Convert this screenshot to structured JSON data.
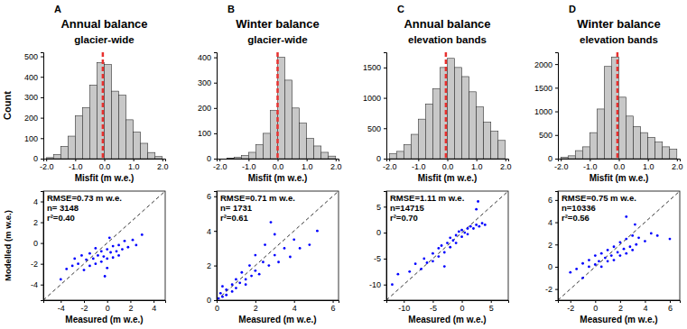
{
  "chart_data": [
    {
      "type": "histogram",
      "panel": "A",
      "title": "Annual balance",
      "subtitle": "glacier-wide",
      "xlabel": "Misfit (m w.e.)",
      "ylabel": "Count",
      "color": "#c8c8c8",
      "bins": [
        -2,
        -1.75,
        -1.5,
        -1.25,
        -1,
        -0.75,
        -0.5,
        -0.25,
        0,
        0.25,
        0.5,
        0.75,
        1,
        1.25,
        1.5,
        1.75,
        2
      ],
      "counts": [
        5,
        20,
        60,
        110,
        210,
        250,
        360,
        470,
        460,
        330,
        310,
        190,
        130,
        75,
        30,
        10
      ],
      "xlim": [
        -2.1,
        2.1
      ],
      "ylim": [
        0,
        520
      ],
      "xticks": [
        {
          "value": -2,
          "label": "-2.0"
        },
        {
          "value": -1,
          "label": "-1.0"
        },
        {
          "value": 0,
          "label": "0.0"
        },
        {
          "value": 1,
          "label": "1.0"
        },
        {
          "value": 2,
          "label": "2.0"
        }
      ],
      "yticks": [
        0,
        100,
        200,
        300,
        400,
        500
      ],
      "vline": {
        "value": -0.05,
        "color": "#e8312f",
        "line_style": "dashed"
      }
    },
    {
      "type": "histogram",
      "panel": "B",
      "title": "Winter balance",
      "subtitle": "glacier-wide",
      "xlabel": "Misfit (m w.e.)",
      "color": "#c8c8c8",
      "bins": [
        -2,
        -1.75,
        -1.5,
        -1.25,
        -1,
        -0.75,
        -0.5,
        -0.25,
        0,
        0.25,
        0.5,
        0.75,
        1,
        1.25,
        1.5,
        1.75,
        2
      ],
      "counts": [
        0,
        2,
        5,
        12,
        25,
        55,
        100,
        190,
        400,
        310,
        200,
        140,
        80,
        50,
        25,
        10
      ],
      "xlim": [
        -2.1,
        2.1
      ],
      "ylim": [
        0,
        420
      ],
      "xticks": [
        {
          "value": -2,
          "label": "-2.0"
        },
        {
          "value": -1,
          "label": "-1.0"
        },
        {
          "value": 0,
          "label": "0.0"
        },
        {
          "value": 1,
          "label": "1.0"
        },
        {
          "value": 2,
          "label": "2.0"
        }
      ],
      "yticks": [
        0,
        100,
        200,
        300,
        400
      ],
      "vline": {
        "value": 0,
        "color": "#e8312f",
        "line_style": "dashed"
      }
    },
    {
      "type": "histogram",
      "panel": "C",
      "title": "Annual balance",
      "subtitle": "elevation bands",
      "xlabel": "Misfit (m w.e.)",
      "color": "#c8c8c8",
      "bins": [
        -2,
        -1.75,
        -1.5,
        -1.25,
        -1,
        -0.75,
        -0.5,
        -0.25,
        0,
        0.25,
        0.5,
        0.75,
        1,
        1.25,
        1.5,
        1.75,
        2
      ],
      "counts": [
        80,
        120,
        230,
        400,
        650,
        900,
        1150,
        1500,
        1650,
        1500,
        1350,
        1100,
        850,
        600,
        450,
        300
      ],
      "xlim": [
        -2.1,
        2.1
      ],
      "ylim": [
        0,
        1750
      ],
      "xticks": [
        {
          "value": -2,
          "label": "-2.0"
        },
        {
          "value": -1,
          "label": "-1.0"
        },
        {
          "value": 0,
          "label": "0.0"
        },
        {
          "value": 1,
          "label": "1.0"
        },
        {
          "value": 2,
          "label": "2.0"
        }
      ],
      "yticks": [
        0,
        500,
        1000,
        1500
      ],
      "vline": {
        "value": -0.05,
        "color": "#e8312f",
        "line_style": "dashed"
      }
    },
    {
      "type": "histogram",
      "panel": "D",
      "title": "Winter balance",
      "subtitle": "elevation bands",
      "xlabel": "Misfit (m w.e.)",
      "color": "#c8c8c8",
      "bins": [
        -2,
        -1.75,
        -1.5,
        -1.25,
        -1,
        -0.75,
        -0.5,
        -0.25,
        0,
        0.25,
        0.5,
        0.75,
        1,
        1.25,
        1.5,
        1.75,
        2
      ],
      "counts": [
        30,
        60,
        170,
        250,
        550,
        1050,
        1950,
        2150,
        1300,
        900,
        680,
        550,
        450,
        350,
        250,
        200
      ],
      "xlim": [
        -2.1,
        2.1
      ],
      "ylim": [
        0,
        2250
      ],
      "xticks": [
        {
          "value": -2,
          "label": "-2.0"
        },
        {
          "value": -1,
          "label": "-1.0"
        },
        {
          "value": 0,
          "label": "0.0"
        },
        {
          "value": 1,
          "label": "1.0"
        },
        {
          "value": 2,
          "label": "2.0"
        }
      ],
      "yticks": [
        0,
        500,
        1000,
        1500,
        2000
      ],
      "vline": {
        "value": -0.05,
        "color": "#e8312f",
        "line_style": "dashed"
      }
    },
    {
      "type": "scatter",
      "xlabel": "Measured (m w.e.)",
      "ylabel": "Modelled (m w.e.)",
      "color": "#0000ff",
      "marker": "dot",
      "annotations": [
        "RMSE=0.73 m w.e.",
        "n= 3148",
        "r²=0.40"
      ],
      "xlim": [
        -5.5,
        5
      ],
      "ylim": [
        -5.5,
        5
      ],
      "xticks": [
        -4,
        -2,
        0,
        2,
        4
      ],
      "yticks": [
        -4,
        -2,
        0,
        2,
        4
      ],
      "x": [
        -3.5,
        -3,
        -2.8,
        -2.5,
        -2.2,
        -2,
        -1.8,
        -1.5,
        -1.5,
        -1.2,
        -1,
        -1,
        -0.8,
        -0.5,
        -0.5,
        -0.3,
        0,
        0,
        0,
        0.3,
        0.5,
        0.5,
        0.8,
        1,
        1,
        1.3,
        1.5,
        1.8,
        2.2,
        2.5,
        -4,
        3,
        -0.2,
        0.2
      ],
      "values": [
        -2.5,
        -2.2,
        -1.5,
        -2,
        -1.2,
        -2.6,
        -1.6,
        -1,
        -2.2,
        -1.5,
        -0.5,
        -2,
        -1.2,
        -0.8,
        -1.8,
        -1.3,
        -0.6,
        -1.5,
        -2.4,
        -0.9,
        -0.3,
        -1.4,
        -0.8,
        -0.2,
        -1.2,
        -0.6,
        0.2,
        -0.4,
        0.3,
        -0.2,
        -3.5,
        0.8,
        -3.2,
        0.5
      ]
    },
    {
      "type": "scatter",
      "xlabel": "Measured (m w.e.)",
      "color": "#0000ff",
      "marker": "dot",
      "annotations": [
        "RMSE=0.71 m w.e.",
        "n= 1731",
        "r²=0.61"
      ],
      "xlim": [
        0,
        6.3
      ],
      "ylim": [
        0,
        6.3
      ],
      "xticks": [
        0,
        2,
        4,
        6
      ],
      "yticks": [
        0,
        2,
        4,
        6
      ],
      "x": [
        0.1,
        0.2,
        0.3,
        0.5,
        0.5,
        0.8,
        0.8,
        1,
        1,
        1.2,
        1.3,
        1.5,
        1.5,
        1.7,
        1.8,
        2,
        2,
        2.2,
        2.4,
        2.5,
        2.7,
        3,
        3,
        3.2,
        3.5,
        3.8,
        4,
        4.3,
        4.8,
        5.2,
        2.8,
        0.3
      ],
      "values": [
        0.1,
        0.4,
        0.2,
        0.6,
        0.3,
        0.9,
        0.5,
        1.2,
        0.7,
        1,
        1.6,
        1.2,
        0.9,
        2,
        1.4,
        1.7,
        2.6,
        1.5,
        2.2,
        3.2,
        2,
        2.6,
        3.8,
        2.2,
        3,
        2.5,
        3.5,
        3,
        3.2,
        4,
        4.5,
        0.8
      ]
    },
    {
      "type": "scatter",
      "xlabel": "Measured (m w.e.)",
      "color": "#0000ff",
      "marker": "dot",
      "annotations": [
        "RMSE=1.11 m w.e.",
        "n=14715",
        "r²=0.70"
      ],
      "xlim": [
        -13,
        8
      ],
      "ylim": [
        -13,
        8
      ],
      "xticks": [
        -10,
        -5,
        0,
        5
      ],
      "yticks": [
        -10,
        -5,
        0,
        5
      ],
      "x": [
        -11,
        -9,
        -8,
        -7,
        -6.5,
        -6,
        -5,
        -5,
        -4,
        -4,
        -3.5,
        -3,
        -2.5,
        -2,
        -2,
        -1.5,
        -1,
        -1,
        -0.5,
        0,
        0,
        0.5,
        1,
        1,
        1.5,
        2,
        2.5,
        3,
        3.5,
        4,
        2.5,
        2.8,
        -12,
        -3
      ],
      "values": [
        -8,
        -7.5,
        -6,
        -7,
        -5,
        -5.8,
        -4,
        -5.5,
        -3,
        -4.6,
        -2.5,
        -3.8,
        -2,
        -2.8,
        -1,
        -1.5,
        -0.5,
        -2,
        0.2,
        -0.8,
        0.5,
        0,
        0.8,
        -0.3,
        1.2,
        0.8,
        1.5,
        1.2,
        1.8,
        1.5,
        4.5,
        6,
        -10,
        -6.5
      ]
    },
    {
      "type": "scatter",
      "xlabel": "Measured (m w.e.)",
      "color": "#0000ff",
      "marker": "dot",
      "annotations": [
        "RMSE=0.75 m w.e.",
        "n=10336",
        "r²=0.56"
      ],
      "xlim": [
        -3,
        6.8
      ],
      "ylim": [
        -3,
        6.8
      ],
      "xticks": [
        -2,
        0,
        2,
        4,
        6
      ],
      "yticks": [
        -2,
        0,
        2,
        4,
        6
      ],
      "x": [
        -2,
        -1.5,
        -1,
        -1,
        -0.5,
        -0.5,
        0,
        0,
        0.3,
        0.5,
        0.5,
        0.8,
        1,
        1,
        1.3,
        1.5,
        1.5,
        1.8,
        2,
        2,
        2.3,
        2.5,
        2.5,
        2.8,
        3,
        3,
        3.3,
        3.5,
        4,
        4.5,
        5,
        2.5,
        3.2,
        6
      ],
      "values": [
        -0.5,
        -0.2,
        0.3,
        -1,
        0,
        0.6,
        0.2,
        1,
        0.5,
        1.2,
        0,
        0.8,
        1.5,
        0.5,
        1,
        1.8,
        0.6,
        1.3,
        2.2,
        1,
        1.6,
        2.5,
        1.2,
        1.8,
        2.8,
        1.5,
        2,
        2.6,
        2.3,
        3,
        2.8,
        4.5,
        3.8,
        2.5
      ]
    }
  ]
}
